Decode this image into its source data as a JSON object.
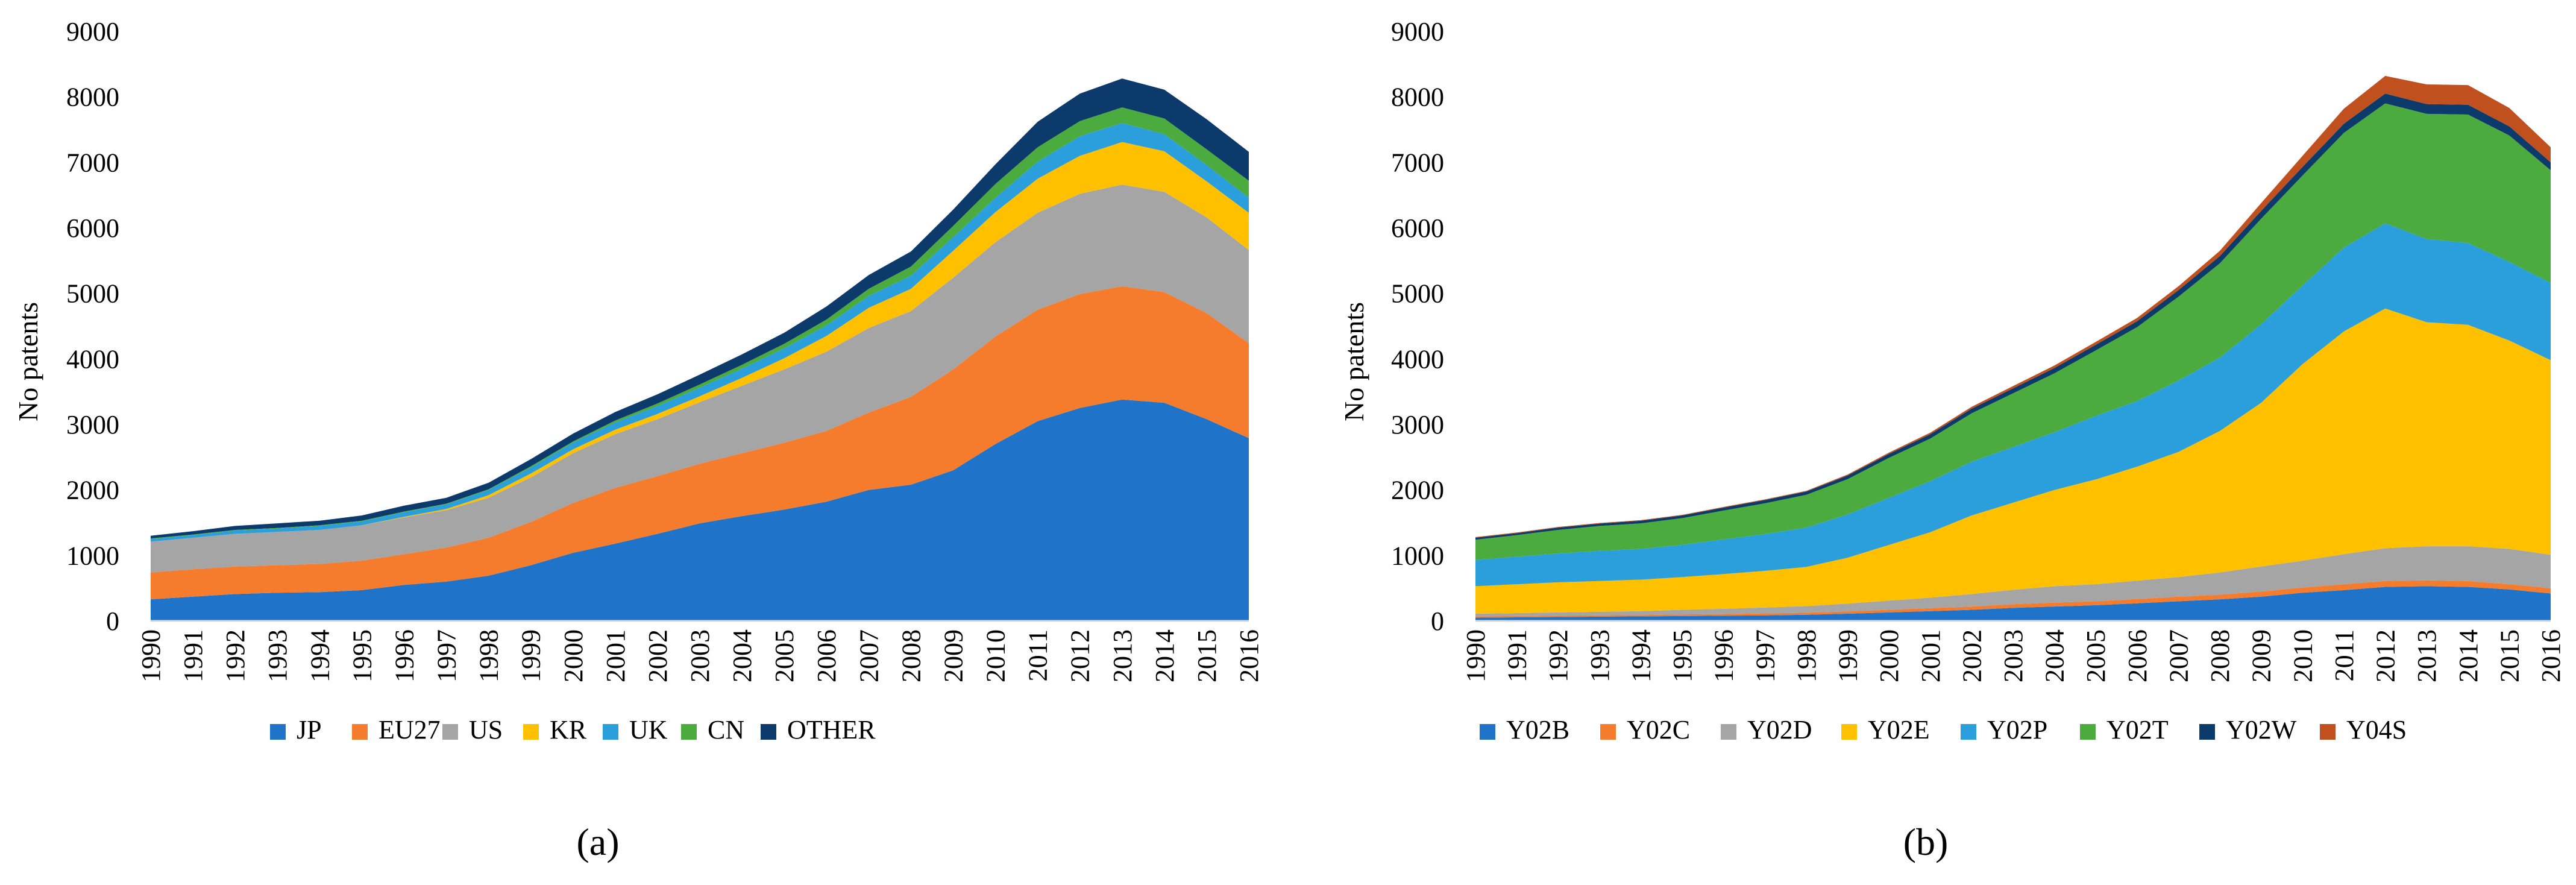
{
  "chart_data": [
    {
      "type": "area",
      "stacked": true,
      "panel_label": "(a)",
      "ylabel": "No patents",
      "xlabel": "",
      "ylim": [
        0,
        9000
      ],
      "yticks": [
        0,
        1000,
        2000,
        3000,
        4000,
        5000,
        6000,
        7000,
        8000,
        9000
      ],
      "x": [
        "1990",
        "1991",
        "1992",
        "1993",
        "1994",
        "1995",
        "1996",
        "1997",
        "1998",
        "1999",
        "2000",
        "2001",
        "2002",
        "2003",
        "2004",
        "2005",
        "2006",
        "2007",
        "2008",
        "2009",
        "2010",
        "2011",
        "2012",
        "2013",
        "2014",
        "2015",
        "2016"
      ],
      "legend_position": "bottom",
      "grid": false,
      "series": [
        {
          "name": "JP",
          "color": "#1f73c8",
          "values": [
            330,
            370,
            410,
            430,
            440,
            470,
            550,
            600,
            690,
            850,
            1040,
            1180,
            1330,
            1490,
            1600,
            1700,
            1820,
            2000,
            2080,
            2300,
            2700,
            3050,
            3250,
            3380,
            3330,
            3080,
            2790
          ]
        },
        {
          "name": "EU27",
          "color": "#f47c2c",
          "values": [
            410,
            420,
            420,
            420,
            430,
            450,
            470,
            520,
            580,
            660,
            760,
            850,
            880,
            910,
            960,
            1020,
            1080,
            1180,
            1340,
            1540,
            1640,
            1700,
            1740,
            1730,
            1690,
            1620,
            1450
          ]
        },
        {
          "name": "US",
          "color": "#a5a5a5",
          "values": [
            470,
            480,
            500,
            510,
            520,
            540,
            560,
            570,
            610,
            680,
            760,
            820,
            870,
            940,
            1030,
            1120,
            1210,
            1290,
            1310,
            1400,
            1440,
            1480,
            1530,
            1550,
            1530,
            1460,
            1420
          ]
        },
        {
          "name": "KR",
          "color": "#ffc000",
          "values": [
            0,
            0,
            0,
            0,
            0,
            0,
            10,
            20,
            40,
            60,
            60,
            70,
            80,
            90,
            120,
            170,
            240,
            310,
            340,
            410,
            460,
            520,
            580,
            650,
            620,
            550,
            570
          ]
        },
        {
          "name": "UK",
          "color": "#2b9fdc",
          "values": [
            40,
            40,
            50,
            50,
            60,
            60,
            70,
            70,
            80,
            90,
            100,
            110,
            120,
            130,
            140,
            150,
            160,
            180,
            200,
            210,
            220,
            260,
            300,
            290,
            260,
            250,
            230
          ]
        },
        {
          "name": "CN",
          "color": "#4bab3e",
          "values": [
            10,
            10,
            10,
            10,
            10,
            10,
            10,
            10,
            10,
            20,
            20,
            30,
            40,
            50,
            60,
            70,
            90,
            110,
            140,
            170,
            210,
            220,
            230,
            240,
            240,
            240,
            260
          ]
        },
        {
          "name": "OTHER",
          "color": "#0b3a6b",
          "values": [
            40,
            50,
            60,
            70,
            70,
            80,
            90,
            90,
            100,
            110,
            120,
            130,
            140,
            150,
            160,
            170,
            200,
            210,
            230,
            250,
            300,
            390,
            420,
            440,
            440,
            460,
            440
          ]
        }
      ]
    },
    {
      "type": "area",
      "stacked": true,
      "panel_label": "(b)",
      "ylabel": "No patents",
      "xlabel": "",
      "ylim": [
        0,
        9000
      ],
      "yticks": [
        0,
        1000,
        2000,
        3000,
        4000,
        5000,
        6000,
        7000,
        8000,
        9000
      ],
      "x": [
        "1990",
        "1991",
        "1992",
        "1993",
        "1994",
        "1995",
        "1996",
        "1997",
        "1998",
        "1999",
        "2000",
        "2001",
        "2002",
        "2003",
        "2004",
        "2005",
        "2006",
        "2007",
        "2008",
        "2009",
        "2010",
        "2011",
        "2012",
        "2013",
        "2014",
        "2015",
        "2016"
      ],
      "legend_position": "bottom",
      "grid": false,
      "series": [
        {
          "name": "Y02B",
          "color": "#1f73c8",
          "values": [
            50,
            55,
            60,
            65,
            70,
            75,
            80,
            85,
            95,
            110,
            130,
            150,
            170,
            200,
            220,
            240,
            270,
            300,
            330,
            370,
            430,
            470,
            520,
            530,
            520,
            480,
            420
          ]
        },
        {
          "name": "Y02C",
          "color": "#f47c2c",
          "values": [
            20,
            20,
            20,
            20,
            20,
            25,
            25,
            30,
            30,
            35,
            40,
            45,
            50,
            55,
            60,
            60,
            65,
            70,
            70,
            80,
            80,
            90,
            90,
            90,
            90,
            80,
            80
          ]
        },
        {
          "name": "Y02D",
          "color": "#a5a5a5",
          "values": [
            40,
            45,
            50,
            55,
            60,
            70,
            80,
            90,
            100,
            120,
            140,
            160,
            190,
            220,
            250,
            260,
            280,
            300,
            340,
            380,
            410,
            460,
            500,
            520,
            530,
            540,
            510
          ]
        },
        {
          "name": "Y02E",
          "color": "#ffc000",
          "values": [
            420,
            440,
            460,
            470,
            480,
            500,
            530,
            560,
            600,
            700,
            850,
            1000,
            1200,
            1330,
            1470,
            1600,
            1740,
            1910,
            2160,
            2500,
            3000,
            3400,
            3660,
            3420,
            3380,
            3180,
            2970
          ]
        },
        {
          "name": "Y02P",
          "color": "#2b9fdc",
          "values": [
            400,
            420,
            440,
            460,
            470,
            490,
            530,
            560,
            600,
            660,
            720,
            780,
            820,
            850,
            880,
            970,
            1000,
            1090,
            1120,
            1200,
            1200,
            1280,
            1300,
            1270,
            1250,
            1200,
            1180
          ]
        },
        {
          "name": "Y02T",
          "color": "#4bab3e",
          "values": [
            310,
            330,
            360,
            380,
            390,
            410,
            440,
            470,
            500,
            540,
            610,
            650,
            740,
            820,
            900,
            1000,
            1130,
            1280,
            1440,
            1610,
            1680,
            1750,
            1830,
            1910,
            1960,
            1930,
            1720
          ]
        },
        {
          "name": "Y02W",
          "color": "#0b3a6b",
          "values": [
            30,
            30,
            35,
            35,
            40,
            40,
            45,
            50,
            50,
            55,
            60,
            65,
            70,
            75,
            80,
            85,
            90,
            100,
            110,
            120,
            130,
            140,
            150,
            150,
            150,
            140,
            120
          ]
        },
        {
          "name": "Y04S",
          "color": "#c0501e",
          "values": [
            10,
            10,
            10,
            10,
            10,
            10,
            10,
            10,
            10,
            15,
            20,
            25,
            30,
            35,
            40,
            45,
            50,
            60,
            80,
            120,
            170,
            230,
            270,
            300,
            300,
            280,
            230
          ]
        }
      ]
    }
  ]
}
